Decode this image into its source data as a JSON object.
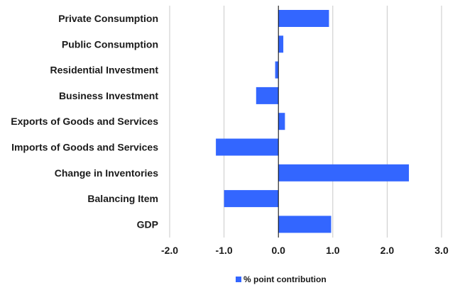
{
  "chart_data": {
    "type": "bar",
    "orientation": "horizontal",
    "categories": [
      "Private Consumption",
      "Public Consumption",
      "Residential Investment",
      "Business Investment",
      "Exports of Goods and Services",
      "Imports of Goods and Services",
      "Change in Inventories",
      "Balancing Item",
      "GDP"
    ],
    "series": [
      {
        "name": "% point contribution",
        "values": [
          0.93,
          0.09,
          -0.06,
          -0.41,
          0.12,
          -1.15,
          2.4,
          -1.0,
          0.97
        ],
        "color": "#3366ff"
      }
    ],
    "xlim": [
      -2.0,
      3.0
    ],
    "xticks": [
      "-2.0",
      "-1.0",
      "0.0",
      "1.0",
      "2.0",
      "3.0"
    ],
    "grid": "vertical",
    "grid_color": "#c8c8c8",
    "zero_line_color": "#000000",
    "legend": "bottom-center",
    "title": "",
    "xlabel": "",
    "ylabel": ""
  }
}
